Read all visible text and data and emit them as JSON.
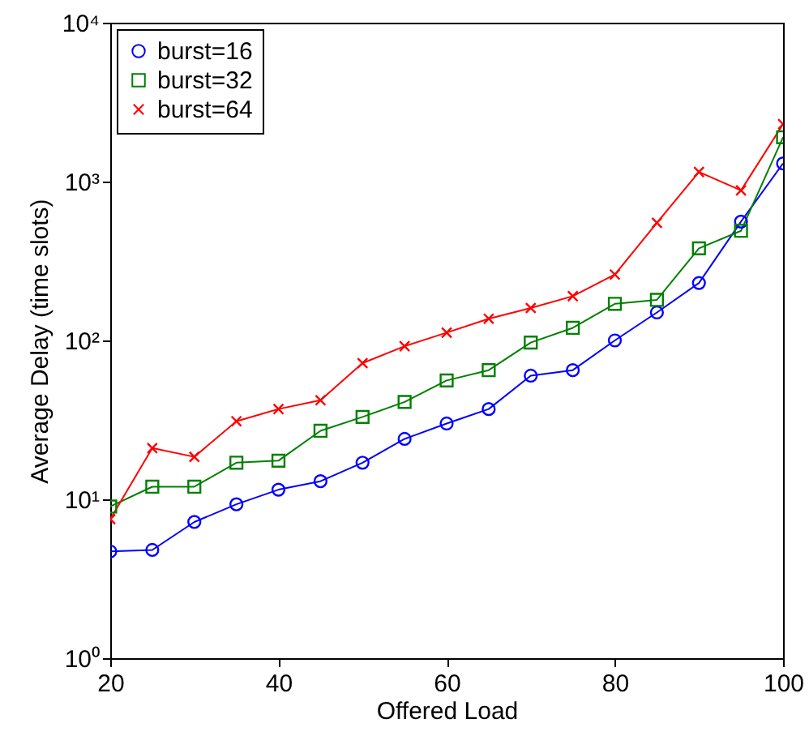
{
  "chart_data": {
    "type": "line",
    "xlabel": "Offered Load",
    "ylabel": "Average Delay (time slots)",
    "x": [
      20,
      25,
      30,
      35,
      40,
      45,
      50,
      55,
      60,
      65,
      70,
      75,
      80,
      85,
      90,
      95,
      100
    ],
    "series": [
      {
        "name": "burst=16",
        "color": "#0000ff",
        "marker": "circle",
        "values": [
          4.7,
          4.8,
          7.2,
          9.3,
          11.5,
          13,
          17,
          24,
          30,
          37,
          60,
          65,
          100,
          150,
          230,
          560,
          1300
        ]
      },
      {
        "name": "burst=32",
        "color": "#008000",
        "marker": "square",
        "values": [
          9,
          12,
          12,
          17,
          17.5,
          27,
          33,
          41,
          56,
          65,
          97,
          120,
          170,
          180,
          380,
          490,
          1900
        ]
      },
      {
        "name": "burst=64",
        "color": "#ff0000",
        "marker": "cross",
        "values": [
          7.5,
          21,
          18.5,
          31,
          37,
          42,
          72,
          92,
          112,
          137,
          160,
          190,
          260,
          550,
          1150,
          880,
          2300
        ]
      }
    ],
    "log": true,
    "xlim": [
      20,
      100
    ],
    "xticks": [
      20,
      40,
      60,
      80,
      100
    ],
    "ylim": [
      1,
      10000
    ],
    "yticks": [
      {
        "value": 1,
        "label": "10⁰"
      },
      {
        "value": 10,
        "label": "10¹"
      },
      {
        "value": 100,
        "label": "10²"
      },
      {
        "value": 1000,
        "label": "10³"
      },
      {
        "value": 10000,
        "label": "10⁴"
      }
    ],
    "legend": "top left",
    "grid": false
  }
}
